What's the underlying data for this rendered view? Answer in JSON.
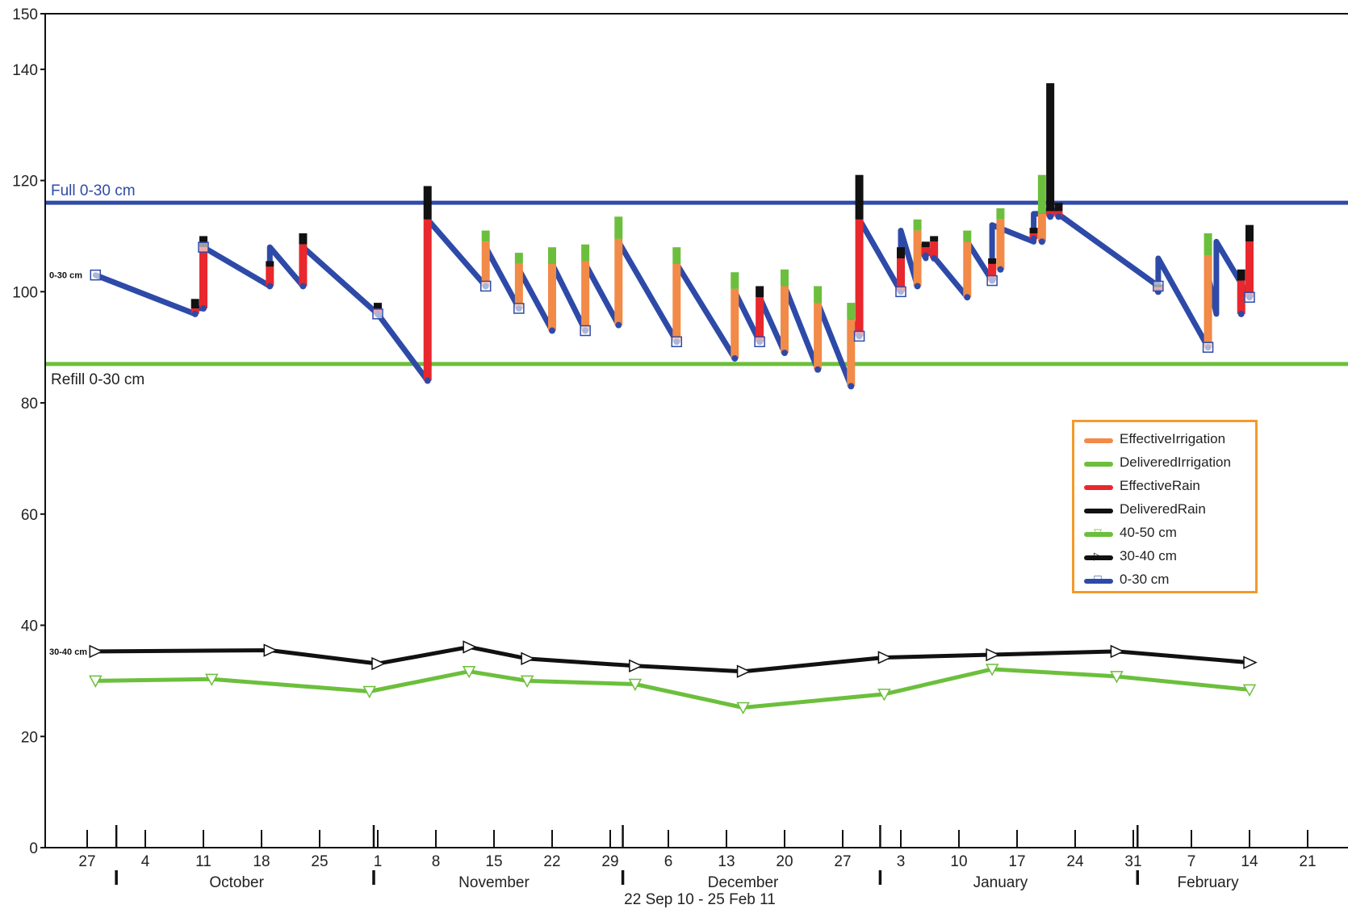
{
  "chart_data": {
    "type": "line",
    "xlabel": "22 Sep 10 - 25 Feb 11",
    "ylabel": "",
    "ylim": [
      0,
      150
    ],
    "yticks": [
      0,
      20,
      40,
      60,
      80,
      100,
      120,
      140,
      150
    ],
    "xlim": [
      "2010-09-22",
      "2011-02-25"
    ],
    "grid": false,
    "legend_position": "right",
    "months": [
      {
        "label": "October",
        "date": "2010-10-15"
      },
      {
        "label": "November",
        "date": "2010-11-15"
      },
      {
        "label": "December",
        "date": "2010-12-15"
      },
      {
        "label": "January",
        "date": "2011-01-15"
      },
      {
        "label": "February",
        "date": "2011-02-09"
      }
    ],
    "month_starts": [
      "2010-10-01",
      "2010-11-01",
      "2010-12-01",
      "2011-01-01",
      "2011-02-01"
    ],
    "week_ticks": [
      {
        "label": "27",
        "date": "2010-09-27"
      },
      {
        "label": "4",
        "date": "2010-10-04"
      },
      {
        "label": "11",
        "date": "2010-10-11"
      },
      {
        "label": "18",
        "date": "2010-10-18"
      },
      {
        "label": "25",
        "date": "2010-10-25"
      },
      {
        "label": "1",
        "date": "2010-11-01"
      },
      {
        "label": "8",
        "date": "2010-11-08"
      },
      {
        "label": "15",
        "date": "2010-11-15"
      },
      {
        "label": "22",
        "date": "2010-11-22"
      },
      {
        "label": "29",
        "date": "2010-11-29"
      },
      {
        "label": "6",
        "date": "2010-12-06"
      },
      {
        "label": "13",
        "date": "2010-12-13"
      },
      {
        "label": "20",
        "date": "2010-12-20"
      },
      {
        "label": "27",
        "date": "2010-12-27"
      },
      {
        "label": "3",
        "date": "2011-01-03"
      },
      {
        "label": "10",
        "date": "2011-01-10"
      },
      {
        "label": "17",
        "date": "2011-01-17"
      },
      {
        "label": "24",
        "date": "2011-01-24"
      },
      {
        "label": "31",
        "date": "2011-01-31"
      },
      {
        "label": "7",
        "date": "2011-02-07"
      },
      {
        "label": "14",
        "date": "2011-02-14"
      },
      {
        "label": "21",
        "date": "2011-02-21"
      }
    ],
    "reference_lines": [
      {
        "label": "Full 0-30 cm",
        "y": 116,
        "color": "#2e4aa8"
      },
      {
        "label": "Refill 0-30 cm",
        "y": 87,
        "color": "#6cbf3c"
      }
    ],
    "series_labels": [
      {
        "label": "0-30 cm",
        "y": 103
      },
      {
        "label": "30-40 cm",
        "y": 35.3
      }
    ],
    "series": [
      {
        "name": "0-30 cm",
        "color": "#2e4aa8",
        "marker": "square",
        "x": [
          "2010-09-28",
          "2010-10-10",
          "2010-10-10",
          "2010-10-11",
          "2010-10-11",
          "2010-10-19",
          "2010-10-19",
          "2010-10-23",
          "2010-10-23",
          "2010-11-01",
          "2010-11-01",
          "2010-11-07",
          "2010-11-07",
          "2010-11-14",
          "2010-11-14",
          "2010-11-18",
          "2010-11-18",
          "2010-11-22",
          "2010-11-22",
          "2010-11-26",
          "2010-11-26",
          "2010-11-30",
          "2010-11-30",
          "2010-12-07",
          "2010-12-07",
          "2010-12-14",
          "2010-12-14",
          "2010-12-17",
          "2010-12-17",
          "2010-12-20",
          "2010-12-20",
          "2010-12-24",
          "2010-12-24",
          "2010-12-28",
          "2010-12-28",
          "2010-12-29",
          "2010-12-29",
          "2011-01-03",
          "2011-01-03",
          "2011-01-05",
          "2011-01-05",
          "2011-01-06",
          "2011-01-06",
          "2011-01-11",
          "2011-01-11",
          "2011-01-14",
          "2011-01-14",
          "2011-01-19",
          "2011-01-19",
          "2011-01-20",
          "2011-01-20",
          "2011-01-21",
          "2011-01-21",
          "2011-02-03",
          "2011-02-03",
          "2011-02-09",
          "2011-02-09",
          "2011-02-10",
          "2011-02-10",
          "2011-02-14"
        ],
        "values": [
          103,
          96,
          97,
          97,
          108,
          101,
          108,
          101,
          108,
          96,
          96,
          84,
          113,
          101,
          108,
          97,
          104,
          93,
          105,
          93,
          105,
          94,
          109,
          91,
          105,
          88,
          100,
          91,
          99,
          89,
          101,
          86,
          98,
          83,
          95,
          92,
          113,
          100,
          111,
          101,
          109,
          106,
          108,
          99,
          109,
          102,
          112,
          109,
          114,
          114,
          115,
          114,
          115,
          101,
          106,
          90,
          103,
          96,
          109,
          99
        ],
        "gap_segments": [
          [
            2,
            3
          ],
          [
            4,
            5
          ]
        ]
      },
      {
        "name": "30-40 cm",
        "color": "#111111",
        "marker": "triangle-right",
        "x": [
          "2010-09-28",
          "2010-10-19",
          "2010-11-01",
          "2010-11-12",
          "2010-11-19",
          "2010-12-02",
          "2010-12-15",
          "2011-01-01",
          "2011-01-14",
          "2011-01-29",
          "2011-02-14"
        ],
        "values": [
          35.3,
          35.5,
          33.1,
          36.1,
          34.0,
          32.7,
          31.7,
          34.2,
          34.7,
          35.3,
          33.3
        ]
      },
      {
        "name": "40-50 cm",
        "color": "#6cbf3c",
        "marker": "triangle-down",
        "x": [
          "2010-09-28",
          "2010-10-12",
          "2010-10-31",
          "2010-11-12",
          "2010-11-19",
          "2010-12-02",
          "2010-12-15",
          "2011-01-01",
          "2011-01-14",
          "2011-01-29",
          "2011-02-14"
        ],
        "values": [
          30.0,
          30.3,
          28.1,
          31.7,
          30.0,
          29.4,
          25.2,
          27.6,
          32.1,
          30.8,
          28.4
        ]
      }
    ],
    "bars": [
      {
        "date": "2010-10-10",
        "base": 96,
        "effective": 1,
        "delivered": 1.7,
        "type": "rain"
      },
      {
        "date": "2010-10-11",
        "base": 97,
        "effective": 11,
        "delivered": 2,
        "type": "rain"
      },
      {
        "date": "2010-10-19",
        "base": 101,
        "effective": 3.5,
        "delivered": 1,
        "type": "rain"
      },
      {
        "date": "2010-10-23",
        "base": 101,
        "effective": 7.5,
        "delivered": 2,
        "type": "rain"
      },
      {
        "date": "2010-11-01",
        "base": 96,
        "effective": 1,
        "delivered": 1,
        "type": "rain"
      },
      {
        "date": "2010-11-07",
        "base": 84,
        "effective": 29,
        "delivered": 6,
        "type": "rain"
      },
      {
        "date": "2010-11-14",
        "base": 101,
        "effective": 8,
        "delivered": 2,
        "type": "irrigation"
      },
      {
        "date": "2010-11-18",
        "base": 97,
        "effective": 8,
        "delivered": 2,
        "type": "irrigation"
      },
      {
        "date": "2010-11-22",
        "base": 93,
        "effective": 12,
        "delivered": 3,
        "type": "irrigation"
      },
      {
        "date": "2010-11-26",
        "base": 93,
        "effective": 12.5,
        "delivered": 3,
        "type": "irrigation"
      },
      {
        "date": "2010-11-30",
        "base": 94,
        "effective": 15.5,
        "delivered": 4,
        "type": "irrigation"
      },
      {
        "date": "2010-12-07",
        "base": 91,
        "effective": 14,
        "delivered": 3,
        "type": "irrigation"
      },
      {
        "date": "2010-12-14",
        "base": 88,
        "effective": 12.5,
        "delivered": 3,
        "type": "irrigation"
      },
      {
        "date": "2010-12-17",
        "base": 91,
        "effective": 8,
        "delivered": 2,
        "type": "rain"
      },
      {
        "date": "2010-12-20",
        "base": 89,
        "effective": 12,
        "delivered": 3,
        "type": "irrigation"
      },
      {
        "date": "2010-12-24",
        "base": 86,
        "effective": 12,
        "delivered": 3,
        "type": "irrigation"
      },
      {
        "date": "2010-12-28",
        "base": 83,
        "effective": 12,
        "delivered": 3,
        "type": "irrigation"
      },
      {
        "date": "2010-12-29",
        "base": 92,
        "effective": 21,
        "delivered": 8,
        "type": "rain"
      },
      {
        "date": "2011-01-03",
        "base": 100,
        "effective": 6,
        "delivered": 2,
        "type": "rain"
      },
      {
        "date": "2011-01-05",
        "base": 101,
        "effective": 10,
        "delivered": 2,
        "type": "irrigation"
      },
      {
        "date": "2011-01-06",
        "base": 106.5,
        "effective": 1.5,
        "delivered": 1,
        "type": "rain"
      },
      {
        "date": "2011-01-07",
        "base": 106,
        "effective": 3,
        "delivered": 1,
        "type": "rain"
      },
      {
        "date": "2011-01-11",
        "base": 99,
        "effective": 10,
        "delivered": 2,
        "type": "irrigation"
      },
      {
        "date": "2011-01-14",
        "base": 102,
        "effective": 3,
        "delivered": 1,
        "type": "rain"
      },
      {
        "date": "2011-01-15",
        "base": 104,
        "effective": 9,
        "delivered": 2,
        "type": "irrigation"
      },
      {
        "date": "2011-01-19",
        "base": 109.5,
        "effective": 1,
        "delivered": 1,
        "type": "rain"
      },
      {
        "date": "2011-01-20",
        "base": 109,
        "effective": 5,
        "delivered": 7,
        "type": "irrigation"
      },
      {
        "date": "2011-01-21",
        "base": 113.5,
        "effective": 1,
        "delivered": 23,
        "type": "rain"
      },
      {
        "date": "2011-01-22",
        "base": 113.5,
        "effective": 1,
        "delivered": 1.5,
        "type": "rain"
      },
      {
        "date": "2011-02-03",
        "base": 100,
        "effective": 0.8,
        "delivered": 0.5,
        "type": "rain"
      },
      {
        "date": "2011-02-09",
        "base": 90,
        "effective": 16.5,
        "delivered": 4,
        "type": "irrigation"
      },
      {
        "date": "2011-02-13",
        "base": 96,
        "effective": 6,
        "delivered": 2,
        "type": "rain"
      },
      {
        "date": "2011-02-14",
        "base": 99,
        "effective": 10,
        "delivered": 3,
        "type": "rain"
      }
    ],
    "legend": [
      {
        "label": "EffectiveIrrigation",
        "color": "#f28a48",
        "marker": ""
      },
      {
        "label": "DeliveredIrrigation",
        "color": "#6cbf3c",
        "marker": ""
      },
      {
        "label": "EffectiveRain",
        "color": "#e8282d",
        "marker": ""
      },
      {
        "label": "DeliveredRain",
        "color": "#111111",
        "marker": ""
      },
      {
        "label": "40-50 cm",
        "color": "#6cbf3c",
        "marker": "triangle-down"
      },
      {
        "label": "30-40 cm",
        "color": "#111111",
        "marker": "triangle-right"
      },
      {
        "label": "0-30 cm",
        "color": "#2e4aa8",
        "marker": "square"
      }
    ]
  }
}
